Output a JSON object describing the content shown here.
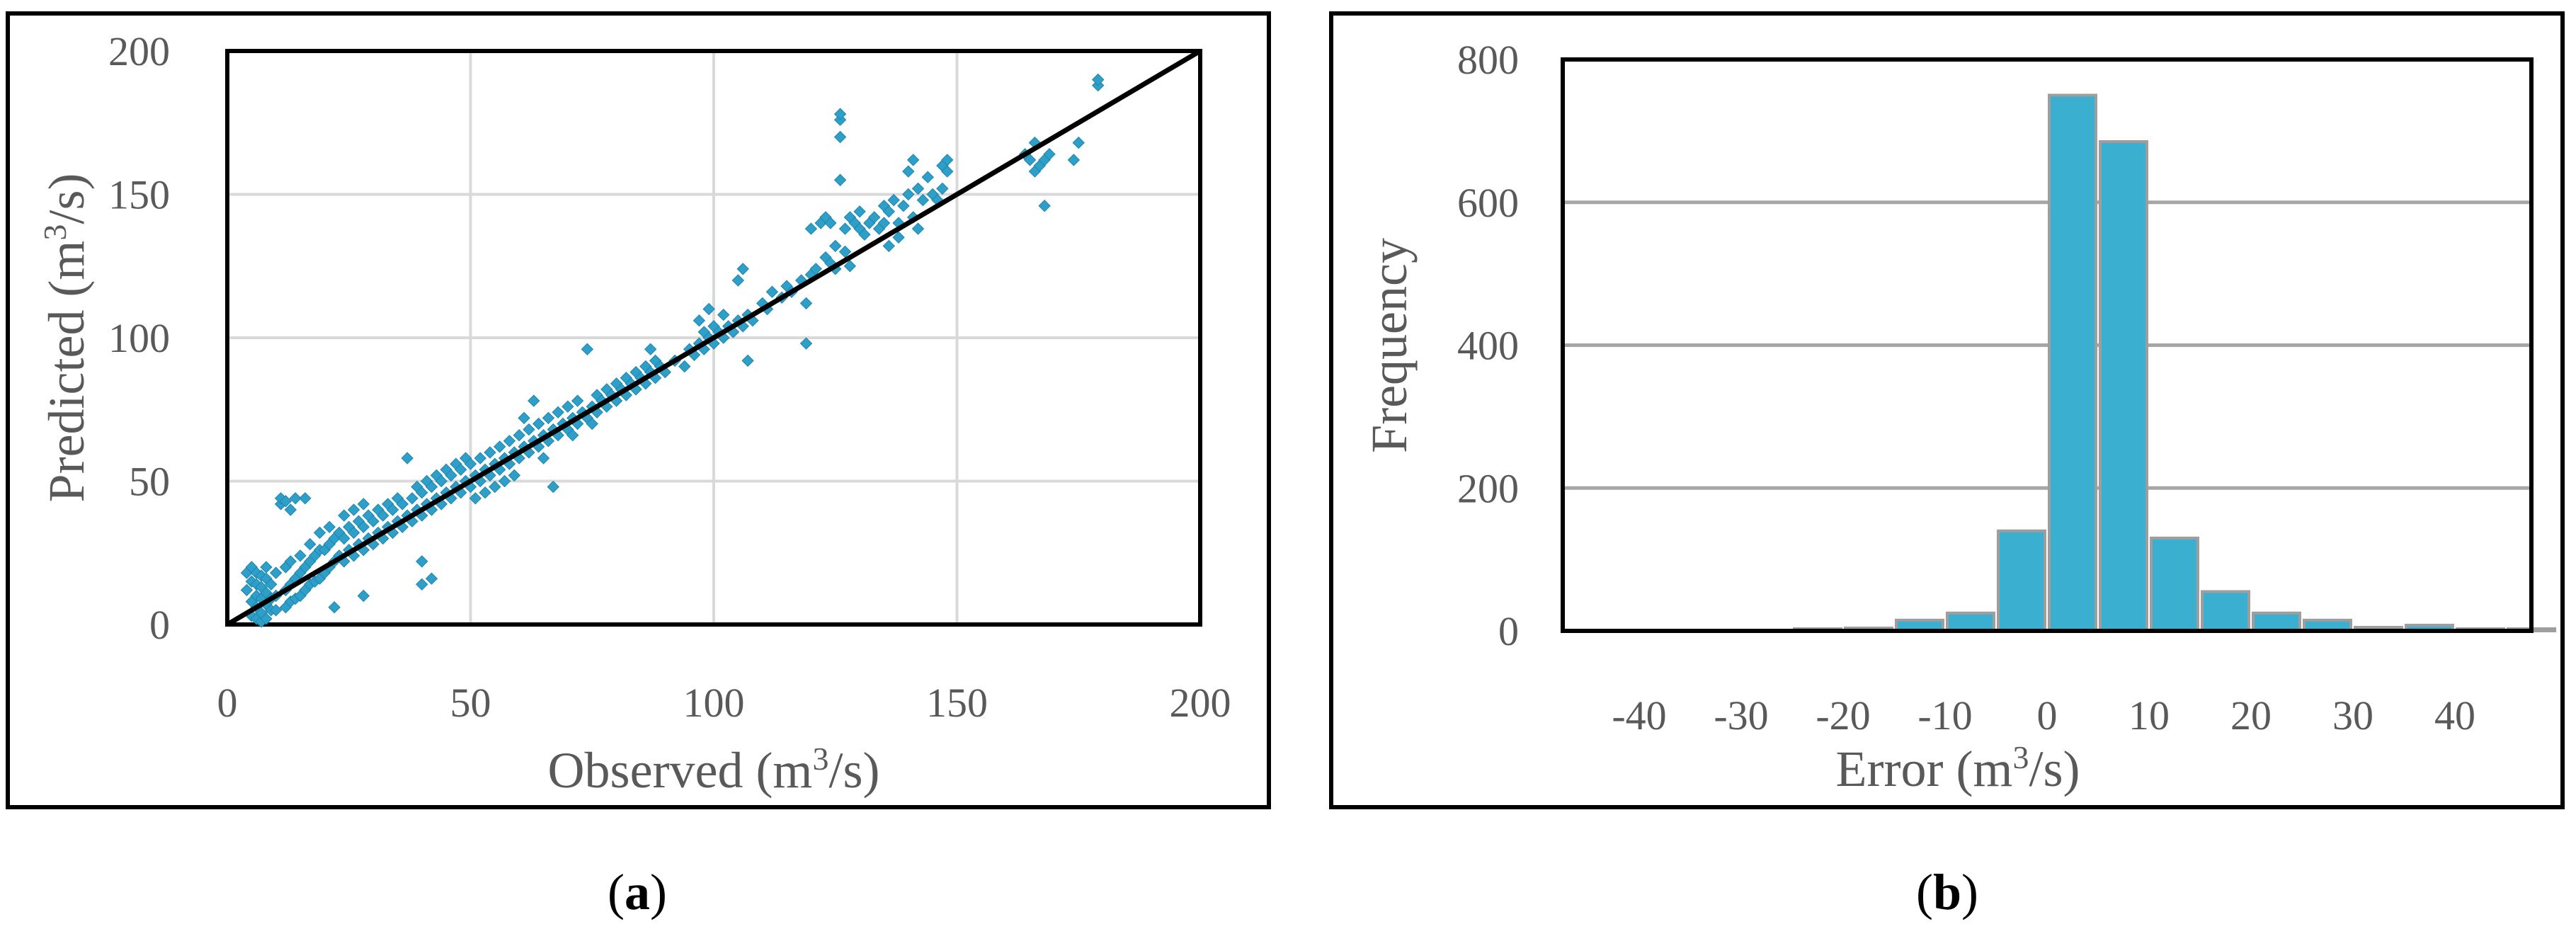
{
  "chart_data": [
    {
      "panel_label": "a",
      "type": "scatter",
      "xlabel": {
        "prefix": "Observed  (m",
        "sup": "3",
        "suffix": "/s)"
      },
      "ylabel": {
        "prefix": "Predicted  (m",
        "sup": "3",
        "suffix": "/s)"
      },
      "xlim": [
        0,
        200
      ],
      "ylim": [
        0,
        200
      ],
      "x_ticks": [
        "0",
        "50",
        "100",
        "150",
        "200"
      ],
      "y_ticks": [
        "0",
        "50",
        "100",
        "150",
        "200"
      ],
      "grid": true,
      "marker_color": "#2E9FC8",
      "line_color": "#000000",
      "reference_line": {
        "x": [
          0,
          200
        ],
        "y": [
          0,
          200
        ]
      },
      "points": [
        [
          4,
          12
        ],
        [
          4,
          18
        ],
        [
          5,
          3
        ],
        [
          5,
          8
        ],
        [
          5,
          15
        ],
        [
          5,
          20
        ],
        [
          6,
          2
        ],
        [
          6,
          6
        ],
        [
          6,
          10
        ],
        [
          6,
          14
        ],
        [
          6,
          18
        ],
        [
          7,
          1
        ],
        [
          7,
          4
        ],
        [
          7,
          9
        ],
        [
          7,
          13
        ],
        [
          7,
          17
        ],
        [
          8,
          2
        ],
        [
          8,
          7
        ],
        [
          8,
          11
        ],
        [
          8,
          16
        ],
        [
          8,
          20
        ],
        [
          9,
          5
        ],
        [
          9,
          9
        ],
        [
          9,
          14
        ],
        [
          10,
          5
        ],
        [
          10,
          10
        ],
        [
          10,
          18
        ],
        [
          11,
          42
        ],
        [
          11,
          44
        ],
        [
          12,
          6
        ],
        [
          12,
          12
        ],
        [
          12,
          20
        ],
        [
          12,
          43
        ],
        [
          13,
          8
        ],
        [
          13,
          14
        ],
        [
          13,
          22
        ],
        [
          13,
          40
        ],
        [
          14,
          9
        ],
        [
          14,
          16
        ],
        [
          14,
          44
        ],
        [
          15,
          10
        ],
        [
          15,
          18
        ],
        [
          15,
          24
        ],
        [
          16,
          12
        ],
        [
          16,
          20
        ],
        [
          16,
          44
        ],
        [
          17,
          14
        ],
        [
          17,
          22
        ],
        [
          17,
          28
        ],
        [
          18,
          15
        ],
        [
          18,
          24
        ],
        [
          19,
          16
        ],
        [
          19,
          26
        ],
        [
          19,
          32
        ],
        [
          20,
          18
        ],
        [
          20,
          26
        ],
        [
          21,
          20
        ],
        [
          21,
          28
        ],
        [
          21,
          34
        ],
        [
          22,
          6
        ],
        [
          22,
          22
        ],
        [
          22,
          30
        ],
        [
          23,
          24
        ],
        [
          23,
          32
        ],
        [
          24,
          22
        ],
        [
          24,
          30
        ],
        [
          24,
          38
        ],
        [
          25,
          26
        ],
        [
          25,
          34
        ],
        [
          26,
          24
        ],
        [
          26,
          32
        ],
        [
          26,
          40
        ],
        [
          27,
          28
        ],
        [
          27,
          36
        ],
        [
          28,
          10
        ],
        [
          28,
          26
        ],
        [
          28,
          34
        ],
        [
          28,
          42
        ],
        [
          29,
          30
        ],
        [
          29,
          38
        ],
        [
          30,
          28
        ],
        [
          30,
          36
        ],
        [
          31,
          32
        ],
        [
          31,
          40
        ],
        [
          32,
          30
        ],
        [
          32,
          38
        ],
        [
          33,
          34
        ],
        [
          33,
          42
        ],
        [
          34,
          32
        ],
        [
          34,
          40
        ],
        [
          35,
          36
        ],
        [
          35,
          44
        ],
        [
          36,
          34
        ],
        [
          36,
          42
        ],
        [
          37,
          38
        ],
        [
          37,
          58
        ],
        [
          38,
          36
        ],
        [
          38,
          44
        ],
        [
          39,
          40
        ],
        [
          39,
          48
        ],
        [
          40,
          14
        ],
        [
          40,
          22
        ],
        [
          40,
          38
        ],
        [
          40,
          46
        ],
        [
          41,
          42
        ],
        [
          41,
          50
        ],
        [
          42,
          40
        ],
        [
          42,
          48
        ],
        [
          42,
          16
        ],
        [
          43,
          44
        ],
        [
          43,
          52
        ],
        [
          44,
          42
        ],
        [
          44,
          50
        ],
        [
          45,
          46
        ],
        [
          45,
          54
        ],
        [
          46,
          44
        ],
        [
          46,
          52
        ],
        [
          47,
          48
        ],
        [
          47,
          56
        ],
        [
          48,
          46
        ],
        [
          48,
          54
        ],
        [
          49,
          50
        ],
        [
          49,
          58
        ],
        [
          50,
          48
        ],
        [
          50,
          56
        ],
        [
          51,
          52
        ],
        [
          51,
          44
        ],
        [
          52,
          50
        ],
        [
          52,
          58
        ],
        [
          53,
          54
        ],
        [
          53,
          46
        ],
        [
          54,
          52
        ],
        [
          54,
          60
        ],
        [
          55,
          56
        ],
        [
          55,
          48
        ],
        [
          56,
          54
        ],
        [
          56,
          62
        ],
        [
          57,
          58
        ],
        [
          57,
          50
        ],
        [
          58,
          56
        ],
        [
          58,
          64
        ],
        [
          59,
          60
        ],
        [
          59,
          52
        ],
        [
          60,
          58
        ],
        [
          60,
          66
        ],
        [
          61,
          62
        ],
        [
          61,
          72
        ],
        [
          62,
          60
        ],
        [
          62,
          68
        ],
        [
          63,
          64
        ],
        [
          63,
          78
        ],
        [
          64,
          62
        ],
        [
          64,
          70
        ],
        [
          65,
          66
        ],
        [
          65,
          58
        ],
        [
          66,
          64
        ],
        [
          66,
          72
        ],
        [
          67,
          68
        ],
        [
          67,
          48
        ],
        [
          68,
          66
        ],
        [
          68,
          74
        ],
        [
          69,
          70
        ],
        [
          70,
          68
        ],
        [
          70,
          76
        ],
        [
          71,
          72
        ],
        [
          71,
          66
        ],
        [
          72,
          70
        ],
        [
          72,
          78
        ],
        [
          73,
          74
        ],
        [
          74,
          72
        ],
        [
          74,
          96
        ],
        [
          75,
          76
        ],
        [
          75,
          70
        ],
        [
          76,
          74
        ],
        [
          76,
          80
        ],
        [
          77,
          78
        ],
        [
          78,
          76
        ],
        [
          78,
          82
        ],
        [
          79,
          80
        ],
        [
          80,
          78
        ],
        [
          80,
          84
        ],
        [
          81,
          82
        ],
        [
          82,
          80
        ],
        [
          82,
          86
        ],
        [
          83,
          84
        ],
        [
          84,
          82
        ],
        [
          84,
          88
        ],
        [
          85,
          86
        ],
        [
          86,
          84
        ],
        [
          86,
          90
        ],
        [
          87,
          88
        ],
        [
          87,
          96
        ],
        [
          88,
          86
        ],
        [
          88,
          92
        ],
        [
          89,
          90
        ],
        [
          90,
          88
        ],
        [
          92,
          92
        ],
        [
          94,
          90
        ],
        [
          95,
          96
        ],
        [
          96,
          94
        ],
        [
          97,
          98
        ],
        [
          97,
          106
        ],
        [
          98,
          96
        ],
        [
          98,
          102
        ],
        [
          99,
          100
        ],
        [
          99,
          110
        ],
        [
          100,
          98
        ],
        [
          100,
          104
        ],
        [
          101,
          102
        ],
        [
          102,
          100
        ],
        [
          102,
          108
        ],
        [
          103,
          104
        ],
        [
          104,
          102
        ],
        [
          105,
          106
        ],
        [
          105,
          120
        ],
        [
          106,
          104
        ],
        [
          106,
          124
        ],
        [
          107,
          108
        ],
        [
          107,
          92
        ],
        [
          108,
          106
        ],
        [
          110,
          112
        ],
        [
          111,
          110
        ],
        [
          112,
          116
        ],
        [
          114,
          114
        ],
        [
          115,
          118
        ],
        [
          116,
          116
        ],
        [
          118,
          120
        ],
        [
          119,
          112
        ],
        [
          119,
          98
        ],
        [
          120,
          122
        ],
        [
          120,
          138
        ],
        [
          121,
          124
        ],
        [
          122,
          140
        ],
        [
          123,
          142
        ],
        [
          123,
          128
        ],
        [
          124,
          126
        ],
        [
          124,
          140
        ],
        [
          125,
          124
        ],
        [
          125,
          132
        ],
        [
          126,
          170
        ],
        [
          126,
          176
        ],
        [
          126,
          178
        ],
        [
          126,
          155
        ],
        [
          127,
          138
        ],
        [
          127,
          130
        ],
        [
          128,
          142
        ],
        [
          128,
          125
        ],
        [
          129,
          140
        ],
        [
          130,
          138
        ],
        [
          130,
          144
        ],
        [
          131,
          136
        ],
        [
          132,
          140
        ],
        [
          133,
          142
        ],
        [
          134,
          138
        ],
        [
          135,
          140
        ],
        [
          135,
          146
        ],
        [
          136,
          144
        ],
        [
          136,
          132
        ],
        [
          137,
          148
        ],
        [
          138,
          140
        ],
        [
          138,
          135
        ],
        [
          139,
          146
        ],
        [
          140,
          150
        ],
        [
          140,
          158
        ],
        [
          141,
          142
        ],
        [
          141,
          162
        ],
        [
          142,
          152
        ],
        [
          142,
          138
        ],
        [
          143,
          148
        ],
        [
          144,
          156
        ],
        [
          145,
          150
        ],
        [
          146,
          148
        ],
        [
          147,
          152
        ],
        [
          147,
          160
        ],
        [
          148,
          158
        ],
        [
          148,
          162
        ],
        [
          164,
          164
        ],
        [
          165,
          162
        ],
        [
          166,
          158
        ],
        [
          166,
          168
        ],
        [
          167,
          160
        ],
        [
          168,
          162
        ],
        [
          168,
          146
        ],
        [
          169,
          164
        ],
        [
          174,
          162
        ],
        [
          175,
          168
        ],
        [
          179,
          188
        ],
        [
          179,
          190
        ]
      ]
    },
    {
      "panel_label": "b",
      "type": "bar",
      "ylabel": "Frequency",
      "xlabel": {
        "prefix": "Error (m",
        "sup": "3",
        "suffix": "/s)"
      },
      "xlim": [
        -47.5,
        47.5
      ],
      "ylim": [
        0,
        800
      ],
      "x_ticks": [
        "-40",
        "-30",
        "-20",
        "-10",
        "0",
        "10",
        "20",
        "30",
        "40"
      ],
      "y_ticks": [
        "0",
        "200",
        "400",
        "600",
        "800"
      ],
      "grid": true,
      "bar_color": "#3AAFD0",
      "bar_edge_color": "#9E9E9E",
      "bins": [
        -42.5,
        -37.5,
        -32.5,
        -27.5,
        -22.5,
        -17.5,
        -12.5,
        -7.5,
        -2.5,
        2.5,
        7.5,
        12.5,
        17.5,
        22.5,
        27.5,
        32.5,
        37.5,
        42.5,
        47.5
      ],
      "values": [
        0,
        0,
        0,
        0,
        3,
        4,
        15,
        25,
        140,
        750,
        685,
        130,
        55,
        25,
        15,
        5,
        8,
        3,
        3
      ]
    }
  ],
  "captions": {
    "a": {
      "open": "(",
      "letter": "a",
      "close": ")"
    },
    "b": {
      "open": "(",
      "letter": "b",
      "close": ")"
    }
  }
}
